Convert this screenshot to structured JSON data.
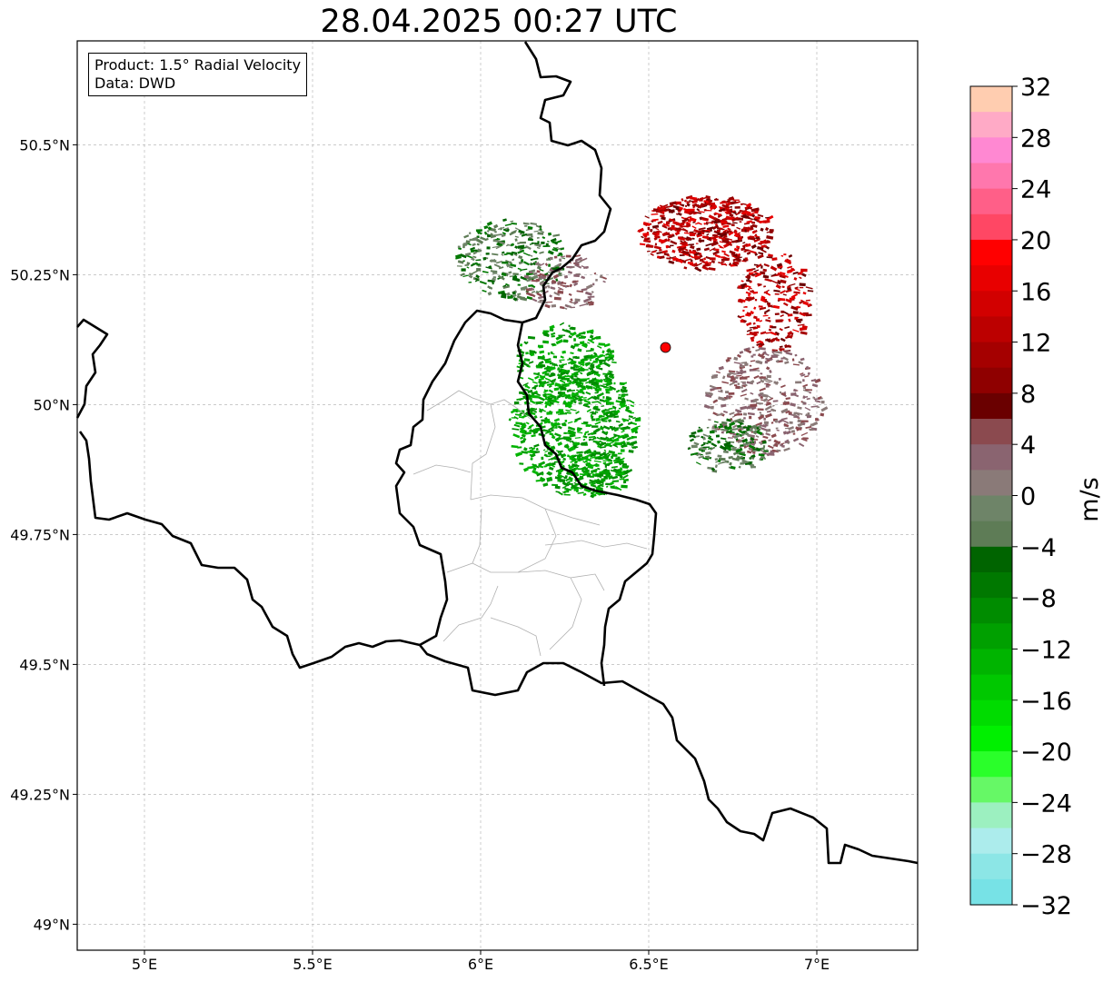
{
  "title": "28.04.2025 00:27 UTC",
  "info": {
    "product": "Product: 1.5° Radial Velocity",
    "data": "Data: DWD"
  },
  "map": {
    "lon_range": [
      4.8,
      7.3
    ],
    "lat_range": [
      48.95,
      50.7
    ],
    "lon_ticks": [
      {
        "v": 5.0,
        "label": "5°E"
      },
      {
        "v": 5.5,
        "label": "5.5°E"
      },
      {
        "v": 6.0,
        "label": "6°E"
      },
      {
        "v": 6.5,
        "label": "6.5°E"
      },
      {
        "v": 7.0,
        "label": "7°E"
      }
    ],
    "lat_ticks": [
      {
        "v": 49.0,
        "label": "49°N"
      },
      {
        "v": 49.25,
        "label": "49.25°N"
      },
      {
        "v": 49.5,
        "label": "49.5°N"
      },
      {
        "v": 49.75,
        "label": "49.75°N"
      },
      {
        "v": 50.0,
        "label": "50°N"
      },
      {
        "v": 50.25,
        "label": "50.25°N"
      },
      {
        "v": 50.5,
        "label": "50.5°N"
      }
    ],
    "radar_site": {
      "lon": 6.55,
      "lat": 50.11,
      "color": "#ff0000"
    },
    "gridlines": true
  },
  "colorbar": {
    "label": "m/s",
    "vmin": -32,
    "vmax": 32,
    "ticks": [
      32,
      28,
      24,
      20,
      16,
      12,
      8,
      4,
      0,
      -4,
      -8,
      -12,
      -16,
      -20,
      -24,
      -28,
      -32
    ],
    "tick_labels": [
      "32",
      "28",
      "24",
      "20",
      "16",
      "12",
      "8",
      "4",
      "0",
      "−4",
      "−8",
      "−12",
      "−16",
      "−20",
      "−24",
      "−28",
      "−32"
    ],
    "colors_top_to_bottom": [
      "#ffcdb0",
      "#ffaac6",
      "#ff88d2",
      "#ff77ad",
      "#ff5f88",
      "#ff4764",
      "#ff0000",
      "#e80000",
      "#d20000",
      "#bc0000",
      "#a50000",
      "#8f0000",
      "#6a0000",
      "#8b4a4f",
      "#8a6470",
      "#8a7a78",
      "#6e8468",
      "#5e7c56",
      "#006400",
      "#007800",
      "#008c00",
      "#00a000",
      "#00b400",
      "#00c800",
      "#00dc00",
      "#00f000",
      "#2aff2a",
      "#66f866",
      "#9cf0c0",
      "#acecec",
      "#8ce6e6",
      "#77e2e6"
    ]
  }
}
